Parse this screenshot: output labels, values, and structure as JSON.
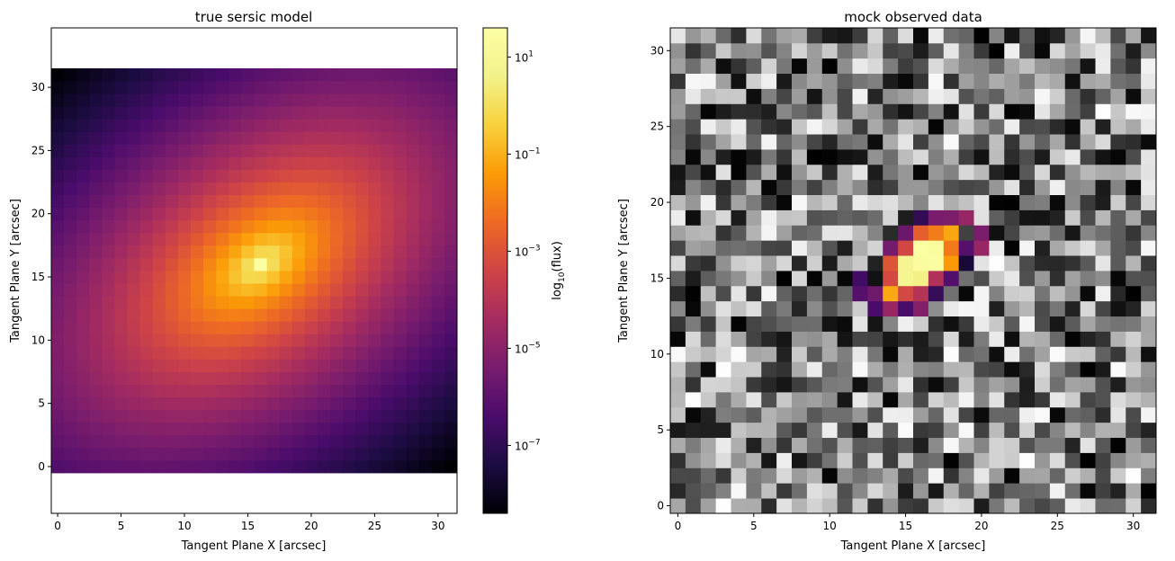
{
  "chart_data": [
    {
      "type": "heatmap",
      "title": "true sersic model",
      "xlabel": "Tangent Plane X [arcsec]",
      "ylabel": "Tangent Plane Y [arcsec]",
      "grid_size": [
        32,
        32
      ],
      "xlim": [
        -0.5,
        31.5
      ],
      "ylim": [
        -3.7,
        34.7
      ],
      "x_ticks": [
        0,
        5,
        10,
        15,
        20,
        25,
        30
      ],
      "y_ticks": [
        0,
        5,
        10,
        15,
        20,
        25,
        30
      ],
      "x_tick_labels": [
        "0",
        "5",
        "10",
        "15",
        "20",
        "25",
        "30"
      ],
      "y_tick_labels": [
        "0",
        "5",
        "10",
        "15",
        "20",
        "25",
        "30"
      ],
      "colormap": "inferno",
      "model": {
        "center": [
          16,
          16
        ],
        "position_angle_deg": 35,
        "axis_ratio": 0.6,
        "log10_flux_peak": 1.5,
        "log10_flux_min": -8.4
      },
      "colorbar": {
        "label_main": "log",
        "label_sub": "10",
        "label_rest": "(flux)",
        "scale": "log",
        "range_log10": [
          -8.4,
          1.6
        ],
        "ticks_log10": [
          1,
          -1,
          -3,
          -5,
          -7
        ],
        "tick_label_base": "10",
        "tick_label_exponents": [
          "1",
          "−1",
          "−3",
          "−5",
          "−7"
        ]
      }
    },
    {
      "type": "heatmap",
      "title": "mock observed data",
      "xlabel": "Tangent Plane X [arcsec]",
      "ylabel": "Tangent Plane Y [arcsec]",
      "grid_size": [
        32,
        32
      ],
      "xlim": [
        -0.5,
        31.5
      ],
      "ylim": [
        -0.5,
        31.5
      ],
      "x_ticks": [
        0,
        5,
        10,
        15,
        20,
        25,
        30
      ],
      "y_ticks": [
        0,
        5,
        10,
        15,
        20,
        25,
        30
      ],
      "x_tick_labels": [
        "0",
        "5",
        "10",
        "15",
        "20",
        "25",
        "30"
      ],
      "y_tick_labels": [
        "0",
        "5",
        "10",
        "15",
        "20",
        "25",
        "30"
      ],
      "background_colormap": "grayscale noise",
      "source_colormap": "inferno",
      "source_center": [
        16,
        16
      ]
    }
  ]
}
